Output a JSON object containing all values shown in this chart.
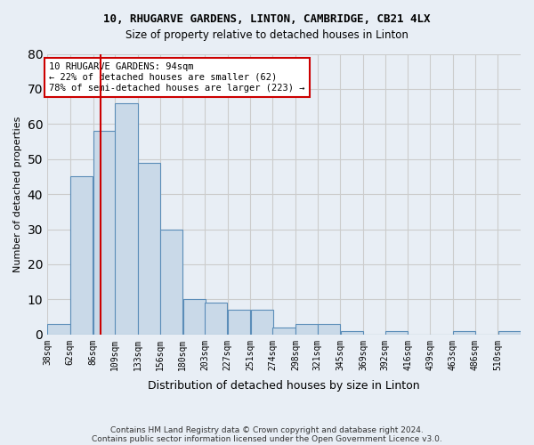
{
  "title1": "10, RHUGARVE GARDENS, LINTON, CAMBRIDGE, CB21 4LX",
  "title2": "Size of property relative to detached houses in Linton",
  "xlabel": "Distribution of detached houses by size in Linton",
  "ylabel": "Number of detached properties",
  "categories": [
    "38sqm",
    "62sqm",
    "86sqm",
    "109sqm",
    "133sqm",
    "156sqm",
    "180sqm",
    "203sqm",
    "227sqm",
    "251sqm",
    "274sqm",
    "298sqm",
    "321sqm",
    "345sqm",
    "369sqm",
    "392sqm",
    "416sqm",
    "439sqm",
    "463sqm",
    "486sqm",
    "510sqm"
  ],
  "values": [
    3,
    45,
    58,
    66,
    49,
    30,
    10,
    9,
    7,
    7,
    2,
    3,
    3,
    1,
    0,
    1,
    0,
    0,
    1,
    0,
    1
  ],
  "bar_color": "#c9d9e8",
  "bar_edge_color": "#5b8db8",
  "bar_edge_width": 0.8,
  "vline_x": 94,
  "vline_color": "#cc0000",
  "annotation_text": "10 RHUGARVE GARDENS: 94sqm\n← 22% of detached houses are smaller (62)\n78% of semi-detached houses are larger (223) →",
  "annotation_box_color": "white",
  "annotation_box_edge_color": "#cc0000",
  "ylim": [
    0,
    80
  ],
  "yticks": [
    0,
    10,
    20,
    30,
    40,
    50,
    60,
    70,
    80
  ],
  "grid_color": "#cccccc",
  "background_color": "#e8eef5",
  "footer1": "Contains HM Land Registry data © Crown copyright and database right 2024.",
  "footer2": "Contains public sector information licensed under the Open Government Licence v3.0.",
  "bin_width": 24,
  "property_sqm": 94
}
